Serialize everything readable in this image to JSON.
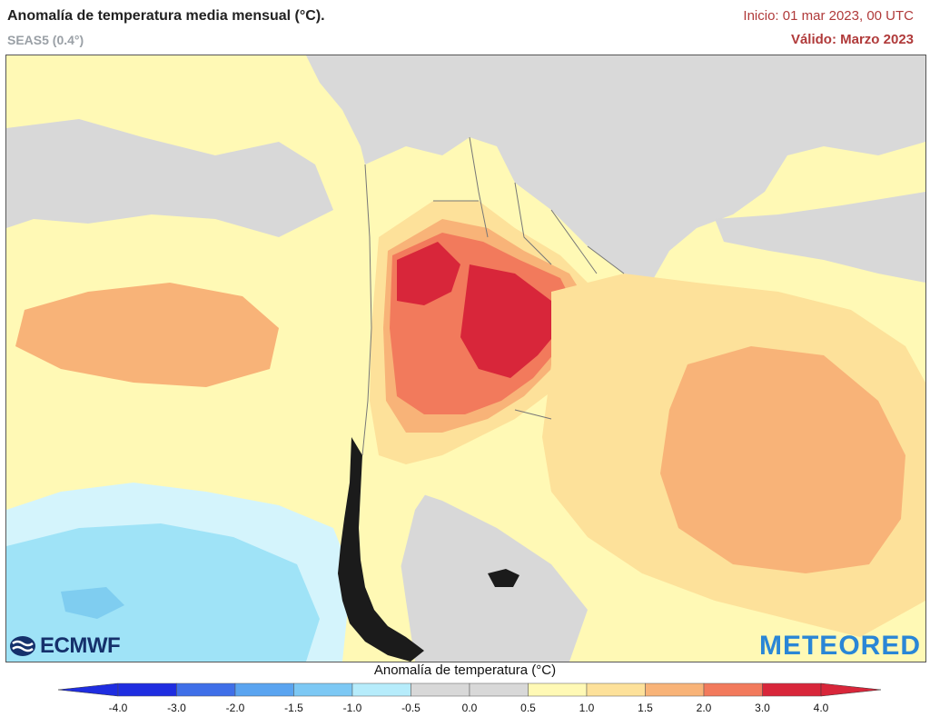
{
  "header": {
    "title": "Anomalía de temperatura media mensual (°C).",
    "subtitle": "SEAS5 (0.4°)",
    "init": "Inicio: 01 mar 2023, 00 UTC",
    "valid": "Válido: Marzo 2023"
  },
  "logos": {
    "ecmwf": "ECMWF",
    "meteored": "METEORED"
  },
  "legend": {
    "title": "Anomalía de temperatura (°C)",
    "ticks": [
      "-4.0",
      "-3.0",
      "-2.0",
      "-1.5",
      "-1.0",
      "-0.5",
      "0.0",
      "0.5",
      "1.0",
      "1.5",
      "2.0",
      "3.0",
      "4.0"
    ],
    "colors": [
      "#1f2de0",
      "#3f6fe8",
      "#5aa4f0",
      "#7cc8f4",
      "#b6ecfb",
      "#d8d8d8",
      "#d8d8d8",
      "#fff9b5",
      "#fde19a",
      "#f8b378",
      "#f27a5c",
      "#d8263a"
    ]
  },
  "map_colors": {
    "land": "#d9d9d9",
    "near_normal": "#d8d8d8",
    "cold_light": "#d4f4fc",
    "cold": "#9fe3f7",
    "cold_dark": "#7fcdf0",
    "warm_light": "#fff9b5",
    "warm": "#fde19a",
    "warm_orange": "#f8b378",
    "hot": "#f27a5c",
    "very_hot": "#d8263a"
  }
}
